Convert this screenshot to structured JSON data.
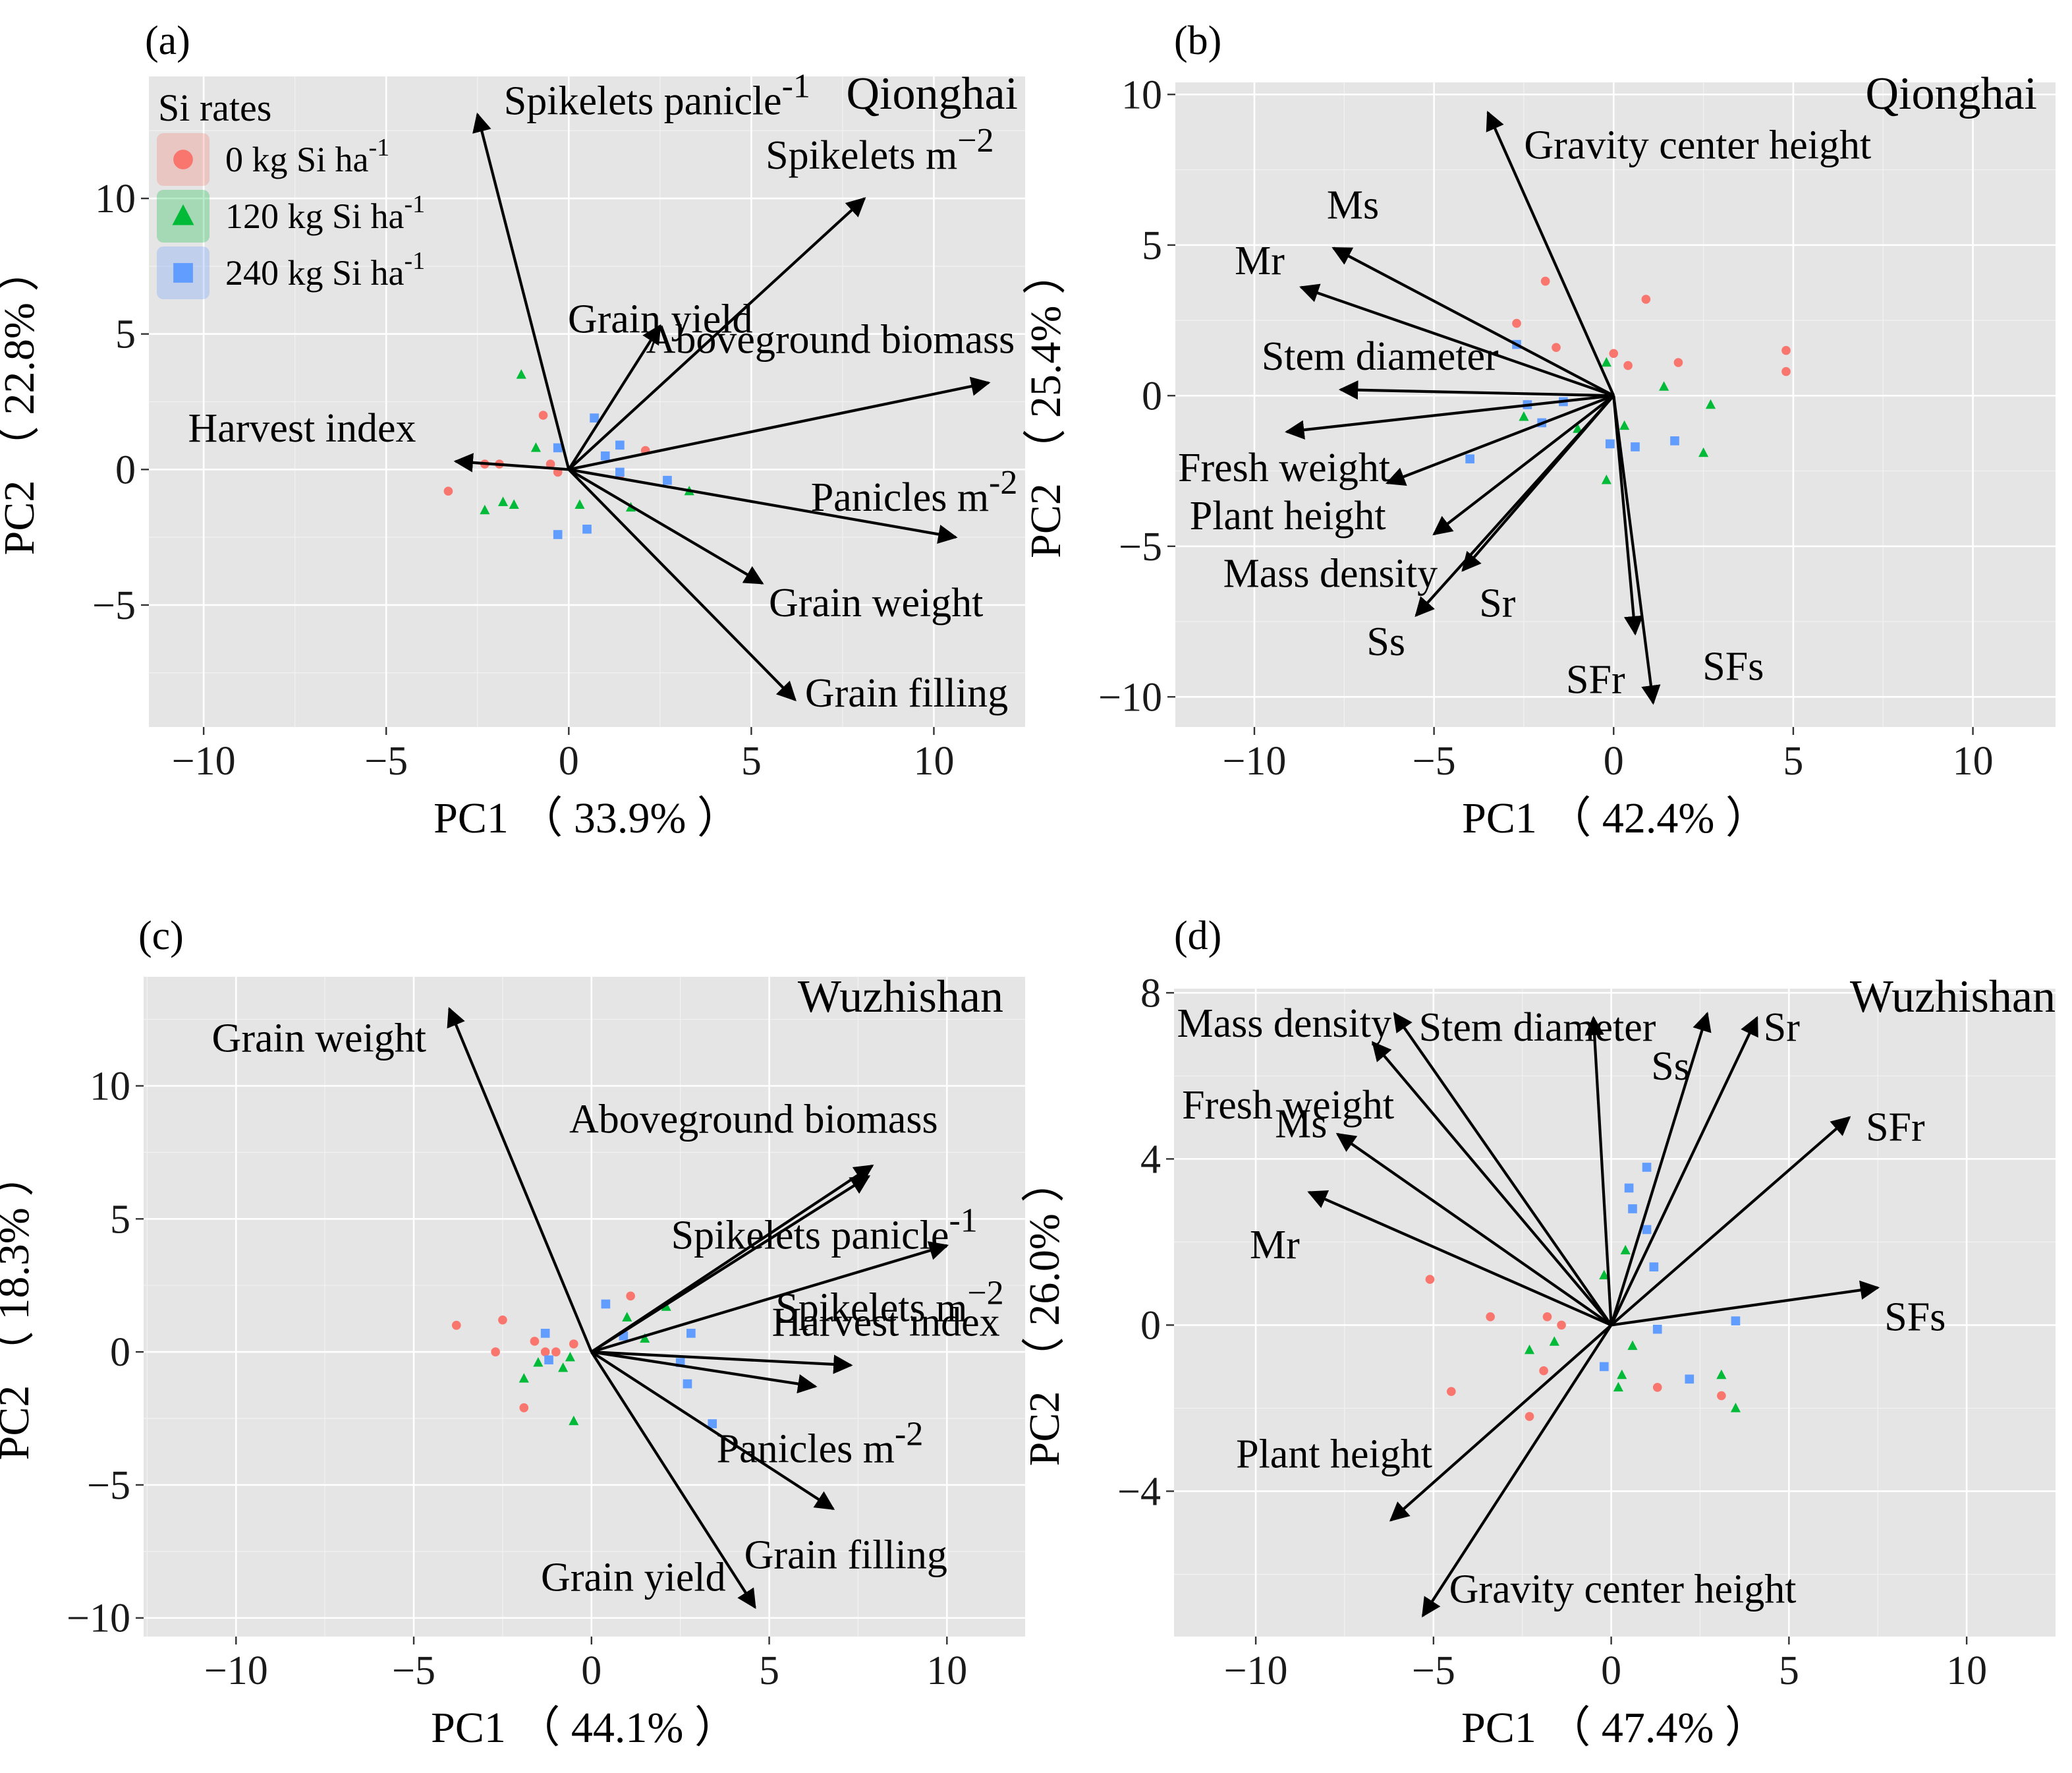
{
  "figure": {
    "legend_title": "Si rates",
    "superscript_note": "ha⁻¹"
  },
  "legend": [
    {
      "name": "0 kg Si ha-1",
      "text": "0 kg Si ha",
      "sup": "-1",
      "color": "#f8766d",
      "shape": "circle"
    },
    {
      "name": "120 kg Si ha-1",
      "text": "120 kg Si ha",
      "sup": "-1",
      "color": "#00ba38",
      "shape": "triangle"
    },
    {
      "name": "240 kg Si ha-1",
      "text": "240 kg Si ha",
      "sup": "-1",
      "color": "#619cff",
      "shape": "square"
    }
  ],
  "chart_data": [
    {
      "type": "scatter",
      "panel": "(a)",
      "site": "Qionghai",
      "xlabel": "PC1 （ 33.9% ）",
      "ylabel": "PC2 （ 22.8% ）",
      "xlim": [
        -11.5,
        12.5
      ],
      "ylim": [
        -9.5,
        14.5
      ],
      "xticks": [
        -10,
        -5,
        0,
        5,
        10
      ],
      "yticks": [
        -5,
        0,
        5,
        10
      ],
      "tick_labels_x": [
        "−10",
        "−5",
        "0",
        "5",
        "10"
      ],
      "tick_labels_y": [
        "−5",
        "0",
        "5",
        "10"
      ],
      "loadings": [
        {
          "label": "Spikelets panicle",
          "sup": "-1",
          "x": -2.5,
          "y": 13.1
        },
        {
          "label": "Spikelets m",
          "sup": "−2",
          "x": 8.1,
          "y": 10.0
        },
        {
          "label": "Grain yield",
          "sup": "",
          "x": 2.5,
          "y": 5.3
        },
        {
          "label": "Aboveground biomass",
          "sup": "",
          "x": 11.5,
          "y": 3.2
        },
        {
          "label": "Harvest index",
          "sup": "",
          "x": -3.1,
          "y": 0.3
        },
        {
          "label": "Panicles m",
          "sup": "-2",
          "x": 10.6,
          "y": -2.5
        },
        {
          "label": "Grain weight",
          "sup": "",
          "x": 5.3,
          "y": -4.2
        },
        {
          "label": "Grain filling",
          "sup": "",
          "x": 6.2,
          "y": -8.5
        }
      ],
      "series": [
        {
          "name": "0 kg Si ha-1",
          "points": [
            [
              -3.3,
              -0.8
            ],
            [
              -2.3,
              0.2
            ],
            [
              -0.7,
              2.0
            ],
            [
              -0.5,
              0.2
            ],
            [
              2.1,
              0.7
            ],
            [
              1.4,
              -0.2
            ],
            [
              -1.9,
              0.2
            ],
            [
              -0.3,
              -0.1
            ]
          ]
        },
        {
          "name": "120 kg Si ha-1",
          "points": [
            [
              -1.3,
              3.5
            ],
            [
              -0.9,
              0.8
            ],
            [
              -2.3,
              -1.5
            ],
            [
              -1.8,
              -1.2
            ],
            [
              -1.5,
              -1.3
            ],
            [
              0.3,
              -1.3
            ],
            [
              1.7,
              -1.4
            ],
            [
              3.3,
              -0.8
            ]
          ]
        },
        {
          "name": "240 kg Si ha-1",
          "points": [
            [
              0.7,
              1.9
            ],
            [
              -0.3,
              0.8
            ],
            [
              1.4,
              0.9
            ],
            [
              1.0,
              0.5
            ],
            [
              2.7,
              -0.4
            ],
            [
              1.4,
              -0.1
            ],
            [
              -0.3,
              -2.4
            ],
            [
              0.5,
              -2.2
            ]
          ]
        }
      ],
      "show_legend": true
    },
    {
      "type": "scatter",
      "panel": "(b)",
      "site": "Qionghai",
      "xlabel": "PC1 （ 42.4% ）",
      "ylabel": "PC2 （ 25.4% ）",
      "xlim": [
        -12.2,
        12.3
      ],
      "ylim": [
        -11.0,
        10.4
      ],
      "xticks": [
        -10,
        -5,
        0,
        5,
        10
      ],
      "yticks": [
        -10,
        -5,
        0,
        5,
        10
      ],
      "tick_labels_x": [
        "−10",
        "−5",
        "0",
        "5",
        "10"
      ],
      "tick_labels_y": [
        "−10",
        "−5",
        "0",
        "5",
        "10"
      ],
      "loadings": [
        {
          "label": "Gravity center height",
          "sup": "",
          "x": -3.5,
          "y": 9.4
        },
        {
          "label": "Ms",
          "sup": "",
          "x": -7.8,
          "y": 4.9
        },
        {
          "label": "Mr",
          "sup": "",
          "x": -8.7,
          "y": 3.6
        },
        {
          "label": "Stem diameter",
          "sup": "",
          "x": -7.6,
          "y": 0.2
        },
        {
          "label": "Fresh weight",
          "sup": "",
          "x": -9.1,
          "y": -1.2
        },
        {
          "label": "Plant height",
          "sup": "",
          "x": -6.3,
          "y": -2.9
        },
        {
          "label": "Mass density",
          "sup": "",
          "x": -5.0,
          "y": -4.6
        },
        {
          "label": "Sr",
          "sup": "",
          "x": -4.2,
          "y": -5.8
        },
        {
          "label": "Ss",
          "sup": "",
          "x": -5.5,
          "y": -7.3
        },
        {
          "label": "SFr",
          "sup": "",
          "x": 0.6,
          "y": -7.9
        },
        {
          "label": "SFs",
          "sup": "",
          "x": 1.1,
          "y": -10.2
        }
      ],
      "series": [
        {
          "name": "0 kg Si ha-1",
          "points": [
            [
              -1.9,
              3.8
            ],
            [
              -2.7,
              2.4
            ],
            [
              -1.6,
              1.6
            ],
            [
              0.0,
              1.4
            ],
            [
              0.4,
              1.0
            ],
            [
              0.9,
              3.2
            ],
            [
              1.8,
              1.1
            ],
            [
              4.8,
              1.5
            ],
            [
              4.8,
              0.8
            ]
          ]
        },
        {
          "name": "120 kg Si ha-1",
          "points": [
            [
              -0.2,
              1.1
            ],
            [
              1.4,
              0.3
            ],
            [
              2.7,
              -0.3
            ],
            [
              2.5,
              -1.9
            ],
            [
              0.3,
              -1.0
            ],
            [
              -0.2,
              -2.8
            ],
            [
              -1.0,
              -1.1
            ],
            [
              -2.5,
              -0.7
            ]
          ]
        },
        {
          "name": "240 kg Si ha-1",
          "points": [
            [
              -2.7,
              1.7
            ],
            [
              -2.4,
              -0.3
            ],
            [
              -1.4,
              -0.2
            ],
            [
              -2.0,
              -0.9
            ],
            [
              -4.0,
              -2.1
            ],
            [
              -0.1,
              -1.6
            ],
            [
              0.6,
              -1.7
            ],
            [
              1.7,
              -1.5
            ]
          ]
        }
      ],
      "show_legend": false
    },
    {
      "type": "scatter",
      "panel": "(c)",
      "site": "Wuzhishan",
      "xlabel": "PC1 （ 44.1% ）",
      "ylabel": "PC2 （ 18.3% ）",
      "xlim": [
        -12.6,
        12.2
      ],
      "ylim": [
        -10.7,
        14.1
      ],
      "xticks": [
        -10,
        -5,
        0,
        5,
        10
      ],
      "yticks": [
        -10,
        -5,
        0,
        5,
        10
      ],
      "tick_labels_x": [
        "−10",
        "−5",
        "0",
        "5",
        "10"
      ],
      "tick_labels_y": [
        "−10",
        "−5",
        "0",
        "5",
        "10"
      ],
      "loadings": [
        {
          "label": "Grain weight",
          "sup": "",
          "x": -4.0,
          "y": 12.9
        },
        {
          "label": "Aboveground biomass",
          "sup": "",
          "x": 7.9,
          "y": 7.0
        },
        {
          "label": "Spikelets panicle",
          "sup": "-1",
          "x": 7.8,
          "y": 6.6
        },
        {
          "label": "Spikelets m",
          "sup": "−2",
          "x": 10.0,
          "y": 4.0
        },
        {
          "label": "Harvest index",
          "sup": "",
          "x": 7.3,
          "y": -0.5
        },
        {
          "label": "Panicles m",
          "sup": "-2",
          "x": 6.3,
          "y": -1.3
        },
        {
          "label": "Grain filling",
          "sup": "",
          "x": 6.8,
          "y": -5.9
        },
        {
          "label": "Grain yield",
          "sup": "",
          "x": 4.6,
          "y": -9.6
        }
      ],
      "series": [
        {
          "name": "0 kg Si ha-1",
          "points": [
            [
              -3.8,
              1.0
            ],
            [
              -2.5,
              1.2
            ],
            [
              -2.7,
              0.0
            ],
            [
              -1.9,
              -2.1
            ],
            [
              -1.6,
              0.4
            ],
            [
              -1.3,
              0.0
            ],
            [
              -0.5,
              0.3
            ],
            [
              1.1,
              2.1
            ],
            [
              -1.0,
              0.0
            ]
          ]
        },
        {
          "name": "120 kg Si ha-1",
          "points": [
            [
              -1.9,
              -1.0
            ],
            [
              -1.5,
              -0.4
            ],
            [
              -0.8,
              -0.6
            ],
            [
              -0.6,
              -0.2
            ],
            [
              -0.5,
              -2.6
            ],
            [
              1.0,
              1.3
            ],
            [
              1.5,
              0.5
            ],
            [
              2.1,
              1.7
            ]
          ]
        },
        {
          "name": "240 kg Si ha-1",
          "points": [
            [
              0.4,
              1.8
            ],
            [
              -1.3,
              0.7
            ],
            [
              -1.2,
              -0.3
            ],
            [
              0.9,
              0.6
            ],
            [
              2.8,
              0.7
            ],
            [
              2.5,
              -0.4
            ],
            [
              2.7,
              -1.2
            ],
            [
              3.4,
              -2.7
            ]
          ]
        }
      ],
      "show_legend": false
    },
    {
      "type": "scatter",
      "panel": "(d)",
      "site": "Wuzhishan",
      "xlabel": "PC1 （ 47.4% ）",
      "ylabel": "PC2 （ 26.0% ）",
      "xlim": [
        -12.3,
        12.5
      ],
      "ylim": [
        -7.5,
        8.1
      ],
      "xticks": [
        -10,
        -5,
        0,
        5,
        10
      ],
      "yticks": [
        -4,
        0,
        4,
        8
      ],
      "tick_labels_x": [
        "−10",
        "−5",
        "0",
        "5",
        "10"
      ],
      "tick_labels_y": [
        "−4",
        "0",
        "4",
        "8"
      ],
      "loadings": [
        {
          "label": "Mass density",
          "sup": "",
          "x": -6.1,
          "y": 7.5
        },
        {
          "label": "Stem diameter",
          "sup": "",
          "x": -0.5,
          "y": 7.4
        },
        {
          "label": "Ss",
          "sup": "",
          "x": 2.7,
          "y": 7.5
        },
        {
          "label": "Sr",
          "sup": "",
          "x": 4.1,
          "y": 7.4
        },
        {
          "label": "Fresh weight",
          "sup": "",
          "x": -6.7,
          "y": 6.8
        },
        {
          "label": "Ms",
          "sup": "",
          "x": -7.7,
          "y": 4.6
        },
        {
          "label": "Mr",
          "sup": "",
          "x": -8.5,
          "y": 3.2
        },
        {
          "label": "SFr",
          "sup": "",
          "x": 6.7,
          "y": 5.0
        },
        {
          "label": "SFs",
          "sup": "",
          "x": 7.5,
          "y": 0.9
        },
        {
          "label": "Plant height",
          "sup": "",
          "x": -6.2,
          "y": -4.7
        },
        {
          "label": "Gravity center height",
          "sup": "",
          "x": -5.3,
          "y": -7.0
        }
      ],
      "series": [
        {
          "name": "0 kg Si ha-1",
          "points": [
            [
              -5.1,
              1.1
            ],
            [
              -4.5,
              -1.6
            ],
            [
              -3.4,
              0.2
            ],
            [
              -1.8,
              0.2
            ],
            [
              -1.4,
              0.0
            ],
            [
              -1.9,
              -1.1
            ],
            [
              -2.3,
              -2.2
            ],
            [
              1.3,
              -1.5
            ],
            [
              3.1,
              -1.7
            ]
          ]
        },
        {
          "name": "120 kg Si ha-1",
          "points": [
            [
              0.4,
              1.8
            ],
            [
              -0.2,
              1.2
            ],
            [
              -2.3,
              -0.6
            ],
            [
              -1.6,
              -0.4
            ],
            [
              0.3,
              -1.2
            ],
            [
              0.2,
              -1.5
            ],
            [
              0.6,
              -0.5
            ],
            [
              3.1,
              -1.2
            ],
            [
              3.5,
              -2.0
            ]
          ]
        },
        {
          "name": "240 kg Si ha-1",
          "points": [
            [
              1.0,
              3.8
            ],
            [
              0.5,
              3.3
            ],
            [
              0.6,
              2.8
            ],
            [
              1.0,
              2.3
            ],
            [
              1.2,
              1.4
            ],
            [
              -0.2,
              -1.0
            ],
            [
              1.3,
              -0.1
            ],
            [
              2.2,
              -1.3
            ],
            [
              3.5,
              0.1
            ]
          ]
        }
      ],
      "show_legend": false
    }
  ]
}
